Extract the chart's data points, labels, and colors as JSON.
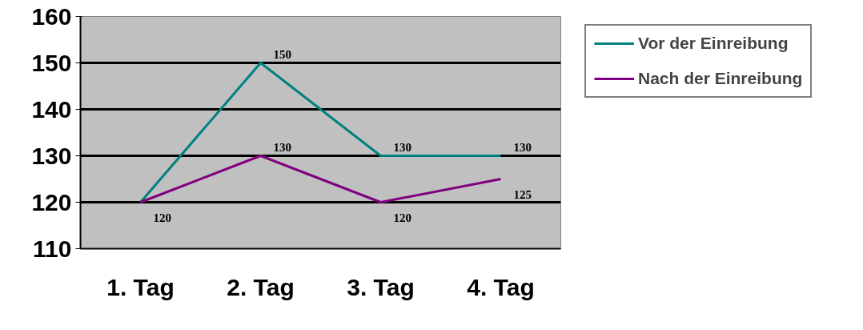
{
  "chart_data": {
    "type": "line",
    "categories": [
      "1. Tag",
      "2. Tag",
      "3. Tag",
      "4. Tag"
    ],
    "series": [
      {
        "name": "Vor der Einreibung",
        "color": "#008080",
        "values": [
          120,
          150,
          130,
          130
        ],
        "value_labels": [
          null,
          "150",
          "130",
          "130"
        ]
      },
      {
        "name": "Nach der Einreibung",
        "color": "#800080",
        "values": [
          120,
          130,
          120,
          125
        ],
        "value_labels": [
          "120",
          "130",
          "120",
          "125"
        ]
      }
    ],
    "ylim": [
      110,
      160
    ],
    "yticks": [
      110,
      120,
      130,
      140,
      150,
      160
    ],
    "grid": "y",
    "legend": "right",
    "marker": "none",
    "line_style": "solid"
  }
}
